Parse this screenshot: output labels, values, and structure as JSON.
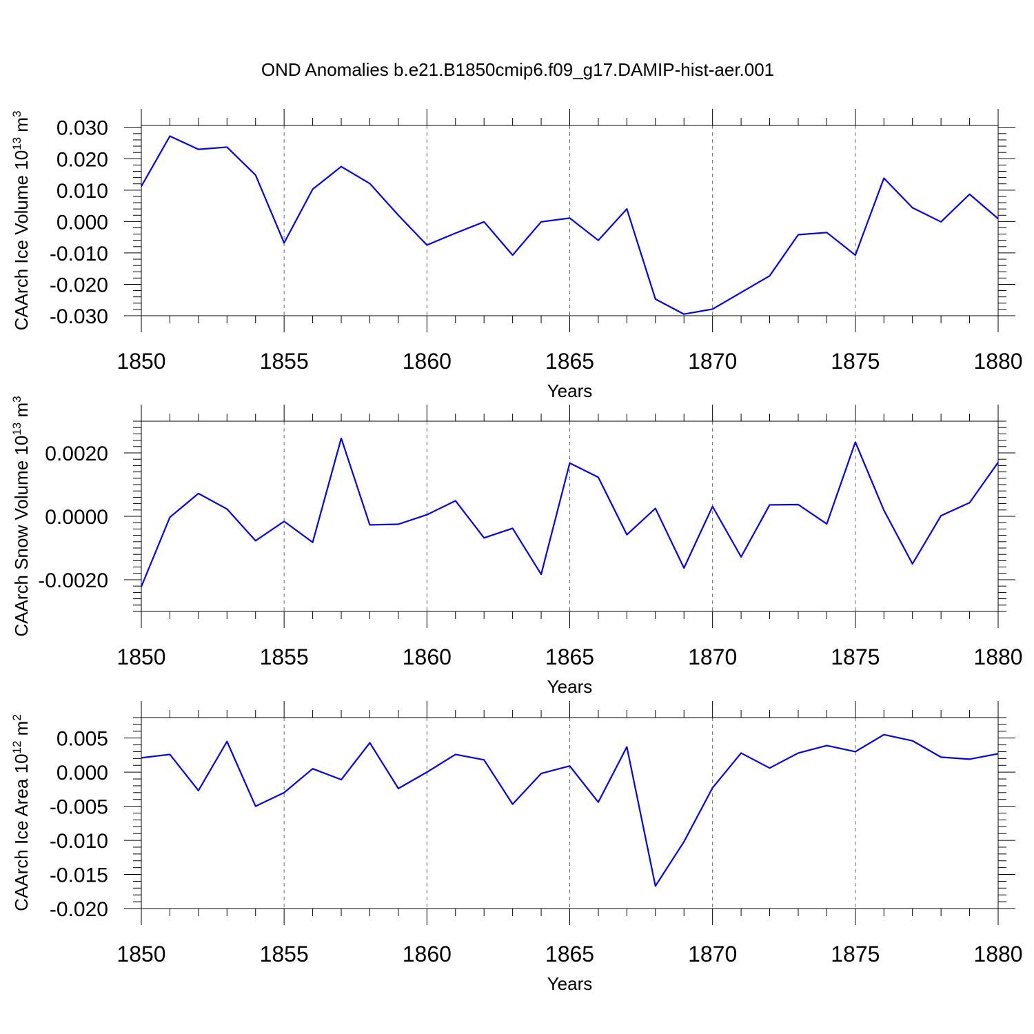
{
  "figure_title": "OND Anomalies b.e21.B1850cmip6.f09_g17.DAMIP-hist-aer.001",
  "line_color": "#0000ff",
  "chart_data": [
    {
      "type": "line",
      "ylabel_main": "CAArch Ice Volume 10",
      "ylabel_exp": "13",
      "ylabel_unit": "m",
      "ylabel_unit_exp": "3",
      "xlabel": "Years",
      "xlim": [
        1850,
        1880
      ],
      "ylim": [
        -0.03,
        0.03
      ],
      "ylim_draw": [
        -0.03,
        0.0306
      ],
      "yticks": [
        -0.03,
        -0.02,
        -0.01,
        0.0,
        0.01,
        0.02,
        0.03
      ],
      "ytick_labels": [
        "-0.030",
        "-0.020",
        "-0.010",
        "0.000",
        "0.010",
        "0.020",
        "0.030"
      ],
      "yminor_step": 0.002,
      "xticks": [
        1850,
        1855,
        1860,
        1865,
        1870,
        1875,
        1880
      ],
      "xtick_labels": [
        "1850",
        "1855",
        "1860",
        "1865",
        "1870",
        "1875",
        "1880"
      ],
      "x": [
        1850,
        1851,
        1852,
        1853,
        1854,
        1855,
        1856,
        1857,
        1858,
        1859,
        1860,
        1861,
        1862,
        1863,
        1864,
        1865,
        1866,
        1867,
        1868,
        1869,
        1870,
        1871,
        1872,
        1873,
        1874,
        1875,
        1876,
        1877,
        1878,
        1879,
        1880
      ],
      "values": [
        0.0112,
        0.0272,
        0.023,
        0.0237,
        0.0148,
        -0.0068,
        0.0103,
        0.0175,
        0.0121,
        0.002,
        -0.0075,
        -0.0037,
        -0.0001,
        -0.0107,
        -0.0001,
        0.0011,
        -0.006,
        0.004,
        -0.0247,
        -0.0295,
        -0.0279,
        -0.0226,
        -0.0173,
        -0.0042,
        -0.0035,
        -0.0107,
        0.0138,
        0.0044,
        -0.0001,
        0.0087,
        0.0009
      ]
    },
    {
      "type": "line",
      "ylabel_main": "CAArch Snow Volume 10",
      "ylabel_exp": "13",
      "ylabel_unit": "m",
      "ylabel_unit_exp": "3",
      "xlabel": "Years",
      "xlim": [
        1850,
        1880
      ],
      "ylim": [
        -0.003,
        0.003
      ],
      "ylim_draw": [
        -0.003,
        0.003
      ],
      "yticks": [
        -0.002,
        0.0,
        0.002
      ],
      "ytick_labels": [
        "-0.0020",
        "0.0000",
        "0.0020"
      ],
      "yminor_step": 0.0002,
      "xticks": [
        1850,
        1855,
        1860,
        1865,
        1870,
        1875,
        1880
      ],
      "xtick_labels": [
        "1850",
        "1855",
        "1860",
        "1865",
        "1870",
        "1875",
        "1880"
      ],
      "x": [
        1850,
        1851,
        1852,
        1853,
        1854,
        1855,
        1856,
        1857,
        1858,
        1859,
        1860,
        1861,
        1862,
        1863,
        1864,
        1865,
        1866,
        1867,
        1868,
        1869,
        1870,
        1871,
        1872,
        1873,
        1874,
        1875,
        1876,
        1877,
        1878,
        1879,
        1880
      ],
      "values": [
        -0.00222,
        -3e-05,
        0.00072,
        0.00023,
        -0.00077,
        -0.00016,
        -0.00082,
        0.00246,
        -0.00027,
        -0.00025,
        5e-05,
        0.00049,
        -0.00068,
        -0.00038,
        -0.00183,
        0.00168,
        0.00123,
        -0.00058,
        0.00025,
        -0.00163,
        0.00031,
        -0.00128,
        0.00036,
        0.00037,
        -0.00024,
        0.00234,
        0.00019,
        -0.0015,
        2e-05,
        0.00043,
        0.0017
      ]
    },
    {
      "type": "line",
      "ylabel_main": "CAArch Ice Area 10",
      "ylabel_exp": "12",
      "ylabel_unit": "m",
      "ylabel_unit_exp": "2",
      "xlabel": "Years",
      "xlim": [
        1850,
        1880
      ],
      "ylim": [
        -0.02,
        0.008
      ],
      "ylim_draw": [
        -0.02,
        0.008
      ],
      "yticks": [
        -0.02,
        -0.015,
        -0.01,
        -0.005,
        0.0,
        0.005
      ],
      "ytick_labels": [
        "-0.020",
        "-0.015",
        "-0.010",
        "-0.005",
        "0.000",
        "0.005"
      ],
      "yminor_step": 0.001,
      "xticks": [
        1850,
        1855,
        1860,
        1865,
        1870,
        1875,
        1880
      ],
      "xtick_labels": [
        "1850",
        "1855",
        "1860",
        "1865",
        "1870",
        "1875",
        "1880"
      ],
      "x": [
        1850,
        1851,
        1852,
        1853,
        1854,
        1855,
        1856,
        1857,
        1858,
        1859,
        1860,
        1861,
        1862,
        1863,
        1864,
        1865,
        1866,
        1867,
        1868,
        1869,
        1870,
        1871,
        1872,
        1873,
        1874,
        1875,
        1876,
        1877,
        1878,
        1879,
        1880
      ],
      "values": [
        0.0021,
        0.0026,
        -0.0027,
        0.0045,
        -0.005,
        -0.003,
        0.0005,
        -0.0011,
        0.0043,
        -0.0024,
        0.0,
        0.0026,
        0.0018,
        -0.0047,
        -0.0002,
        0.0009,
        -0.0044,
        0.0037,
        -0.0167,
        -0.0102,
        -0.0023,
        0.0028,
        0.0006,
        0.0028,
        0.0039,
        0.003,
        0.0055,
        0.0046,
        0.0022,
        0.0019,
        0.0027
      ]
    }
  ]
}
